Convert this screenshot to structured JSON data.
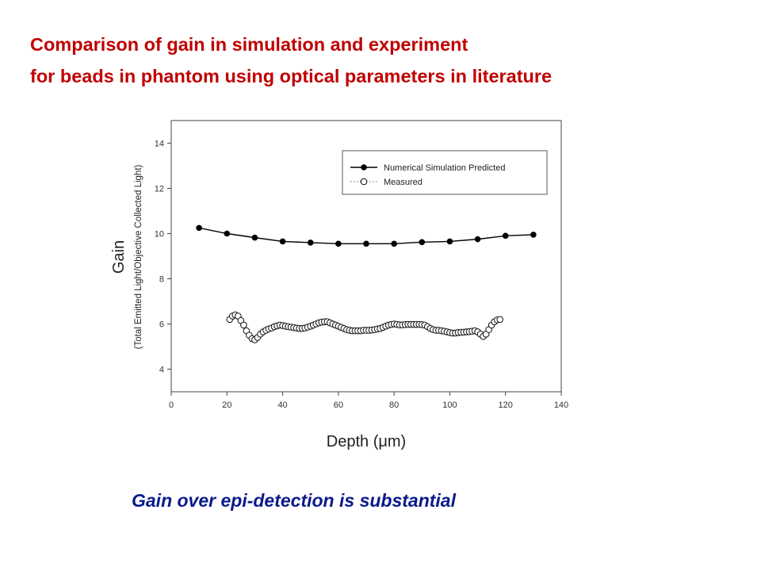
{
  "slide": {
    "title_line1": "Comparison of gain in simulation and experiment",
    "title_line2": "for beads in phantom using optical parameters in literature",
    "caption": "Gain over epi-detection is substantial",
    "title_color": "#c00000",
    "caption_color": "#0a1a8a"
  },
  "chart_data": {
    "type": "line",
    "xlabel": "Depth (μm)",
    "ylabel": "Gain",
    "ylabel_sub": "(Total Emitted Light/Objective Collected Light)",
    "xlim": [
      0,
      140
    ],
    "ylim": [
      3,
      15
    ],
    "xticks": [
      0,
      20,
      40,
      60,
      80,
      100,
      120,
      140
    ],
    "yticks": [
      4,
      6,
      8,
      10,
      12,
      14
    ],
    "xtick_labels": [
      "0",
      "20",
      "40",
      "60",
      "80",
      "100",
      "120",
      "140"
    ],
    "ytick_labels": [
      "4",
      "6",
      "8",
      "10",
      "12",
      "14"
    ],
    "grid": false,
    "legend_position": "top-right",
    "series": [
      {
        "name": "Numerical Simulation Predicted",
        "marker": "filled-circle",
        "line_style": "solid",
        "x": [
          10,
          20,
          30,
          40,
          50,
          60,
          70,
          80,
          90,
          100,
          110,
          120,
          130
        ],
        "y": [
          10.25,
          10.0,
          9.82,
          9.65,
          9.6,
          9.55,
          9.55,
          9.55,
          9.62,
          9.65,
          9.75,
          9.9,
          9.95
        ]
      },
      {
        "name": "Measured",
        "marker": "open-circle",
        "line_style": "dotted",
        "x": [
          21,
          22,
          23,
          24,
          25,
          26,
          27,
          28,
          29,
          30,
          31,
          32,
          33,
          34,
          35,
          36,
          37,
          38,
          39,
          40,
          41,
          42,
          43,
          44,
          45,
          46,
          47,
          48,
          49,
          50,
          51,
          52,
          53,
          54,
          55,
          56,
          57,
          58,
          59,
          60,
          61,
          62,
          63,
          64,
          65,
          66,
          67,
          68,
          69,
          70,
          71,
          72,
          73,
          74,
          75,
          76,
          77,
          78,
          79,
          80,
          81,
          82,
          83,
          84,
          85,
          86,
          87,
          88,
          89,
          90,
          91,
          92,
          93,
          94,
          95,
          96,
          97,
          98,
          99,
          100,
          101,
          102,
          103,
          104,
          105,
          106,
          107,
          108,
          109,
          110,
          111,
          112,
          113,
          114,
          115,
          116,
          117,
          118
        ],
        "y": [
          6.2,
          6.35,
          6.4,
          6.35,
          6.15,
          5.95,
          5.7,
          5.5,
          5.35,
          5.3,
          5.4,
          5.55,
          5.65,
          5.72,
          5.78,
          5.82,
          5.88,
          5.92,
          5.95,
          5.93,
          5.9,
          5.88,
          5.86,
          5.84,
          5.82,
          5.8,
          5.8,
          5.82,
          5.86,
          5.9,
          5.95,
          6.0,
          6.05,
          6.08,
          6.1,
          6.1,
          6.05,
          6.0,
          5.95,
          5.9,
          5.85,
          5.8,
          5.75,
          5.72,
          5.7,
          5.7,
          5.7,
          5.7,
          5.72,
          5.72,
          5.72,
          5.73,
          5.75,
          5.78,
          5.8,
          5.85,
          5.9,
          5.95,
          5.98,
          6.0,
          5.98,
          5.96,
          5.96,
          5.97,
          5.98,
          5.98,
          5.98,
          5.98,
          5.98,
          5.97,
          5.95,
          5.88,
          5.8,
          5.75,
          5.72,
          5.72,
          5.7,
          5.68,
          5.65,
          5.62,
          5.6,
          5.6,
          5.62,
          5.63,
          5.64,
          5.65,
          5.66,
          5.68,
          5.7,
          5.65,
          5.55,
          5.45,
          5.55,
          5.75,
          5.95,
          6.1,
          6.18,
          6.2
        ]
      }
    ]
  }
}
